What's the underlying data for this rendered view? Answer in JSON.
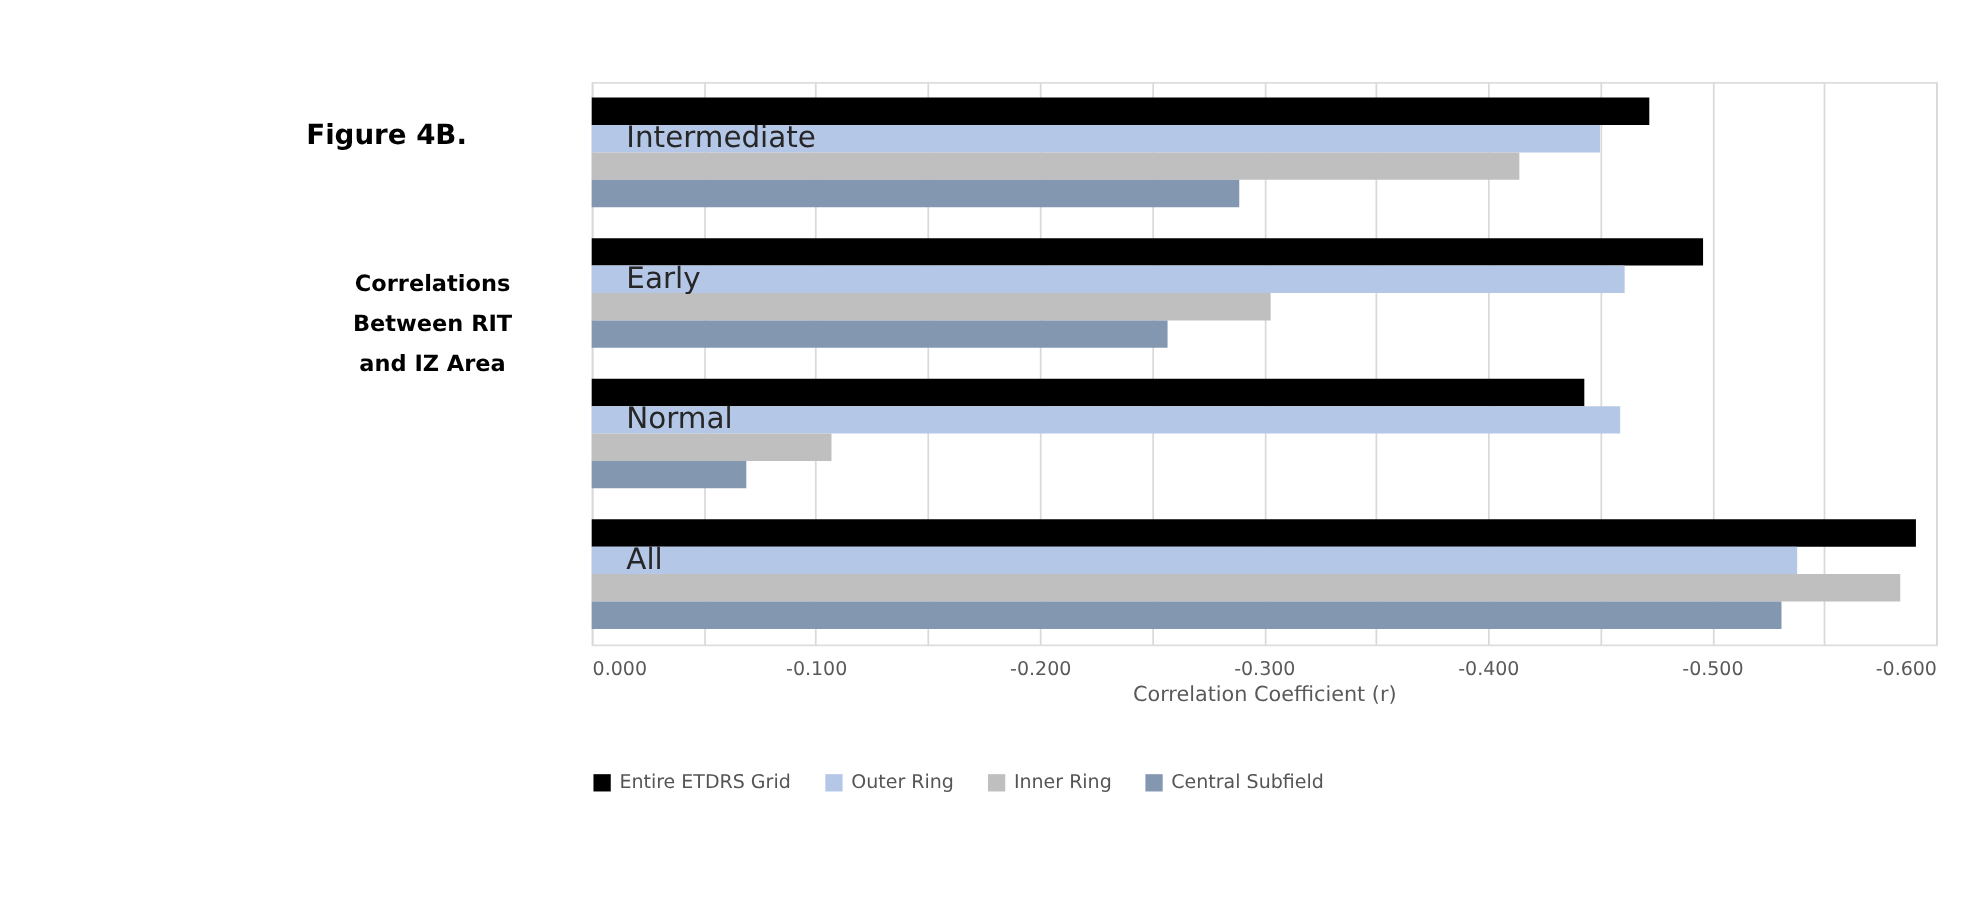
{
  "chart_data": {
    "type": "bar",
    "orientation": "horizontal",
    "title": "Figure 4B.",
    "subtitle": "Correlations Between RIT and IZ Area",
    "xlabel": "Correlation Coefficient (r)",
    "categories": [
      "Intermediate",
      "Early",
      "Normal",
      "All"
    ],
    "series": [
      {
        "name": "Entire ETDRS Grid",
        "color": "#000000",
        "values": [
          -0.472,
          -0.496,
          -0.443,
          -0.591
        ]
      },
      {
        "name": "Outer Ring",
        "color": "#b4c7e7",
        "values": [
          -0.45,
          -0.461,
          -0.459,
          -0.538
        ]
      },
      {
        "name": "Inner Ring",
        "color": "#bfbfbf",
        "values": [
          -0.414,
          -0.303,
          -0.107,
          -0.584
        ]
      },
      {
        "name": "Central Subfield",
        "color": "#8497b0",
        "values": [
          -0.289,
          -0.257,
          -0.069,
          -0.531
        ]
      }
    ],
    "xlim": [
      0,
      -0.6
    ],
    "xticks": [
      {
        "value": 0,
        "label": "0.000"
      },
      {
        "value": -0.05,
        "label": null
      },
      {
        "value": -0.1,
        "label": "-0.100"
      },
      {
        "value": -0.15,
        "label": null
      },
      {
        "value": -0.2,
        "label": "-0.200"
      },
      {
        "value": -0.25,
        "label": null
      },
      {
        "value": -0.3,
        "label": "-0.300"
      },
      {
        "value": -0.35,
        "label": null
      },
      {
        "value": -0.4,
        "label": "-0.400"
      },
      {
        "value": -0.45,
        "label": null
      },
      {
        "value": -0.5,
        "label": "-0.500"
      },
      {
        "value": -0.55,
        "label": null
      },
      {
        "value": -0.6,
        "label": "-0.600"
      }
    ],
    "grid": "x",
    "legend": "bottom"
  }
}
